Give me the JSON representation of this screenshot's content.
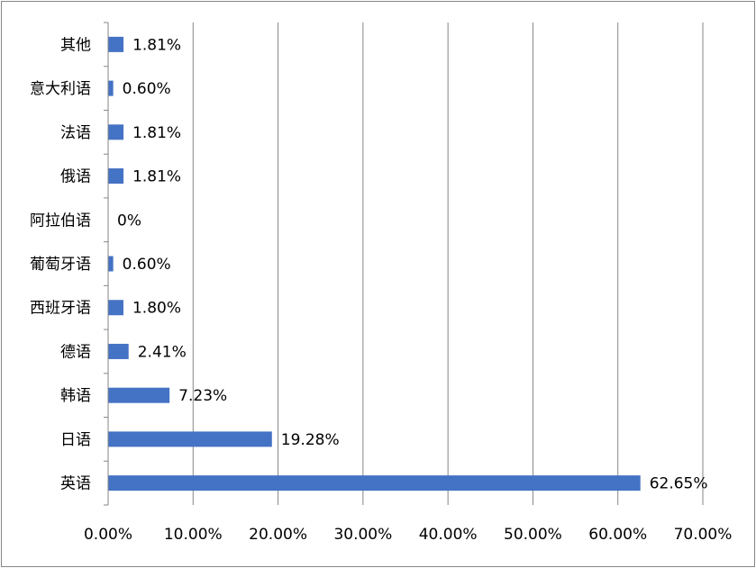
{
  "chart_data": {
    "type": "bar",
    "orientation": "horizontal",
    "categories": [
      "英语",
      "日语",
      "韩语",
      "德语",
      "西班牙语",
      "葡萄牙语",
      "阿拉伯语",
      "俄语",
      "法语",
      "意大利语",
      "其他"
    ],
    "values": [
      62.65,
      19.28,
      7.23,
      2.41,
      1.8,
      0.6,
      0,
      1.81,
      1.81,
      0.6,
      1.81
    ],
    "value_labels": [
      "62.65%",
      "19.28%",
      "7.23%",
      "2.41%",
      "1.80%",
      "0.60%",
      "0%",
      "1.81%",
      "1.81%",
      "0.60%",
      "1.81%"
    ],
    "xlim": [
      0,
      70
    ],
    "x_ticks": [
      0,
      10,
      20,
      30,
      40,
      50,
      60,
      70
    ],
    "x_tick_labels": [
      "0.00%",
      "10.00%",
      "20.00%",
      "30.00%",
      "40.00%",
      "50.00%",
      "60.00%",
      "70.00%"
    ],
    "grid": "vertical",
    "legend": "none",
    "title": "",
    "xlabel": "",
    "ylabel": "",
    "colors": {
      "bar": "#4472C4",
      "grid": "#868686",
      "axis": "#868686",
      "frame": "#868686"
    }
  }
}
